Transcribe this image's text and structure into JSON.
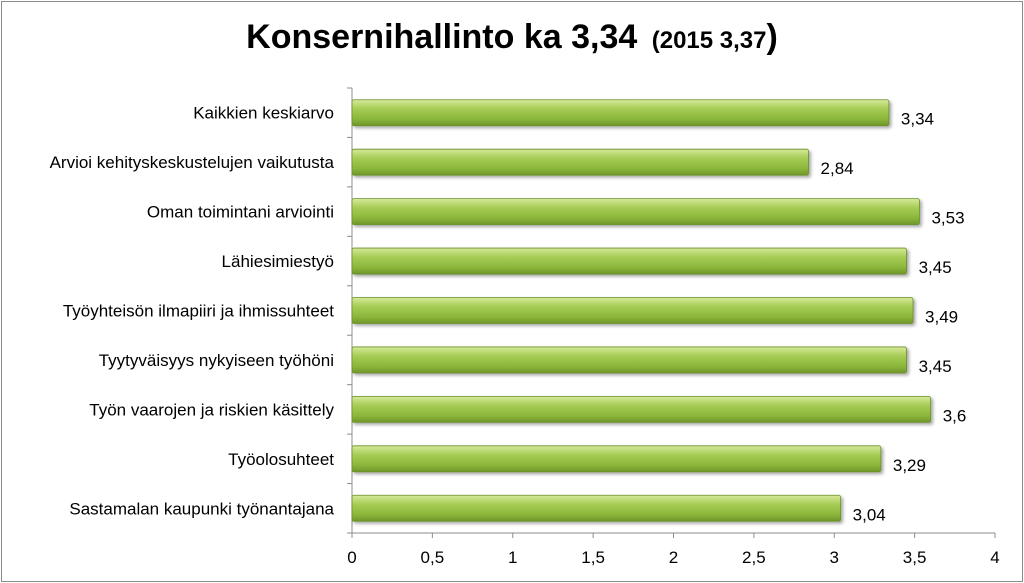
{
  "chart_data": {
    "type": "bar",
    "orientation": "horizontal",
    "title": "Konsernihallinto ka 3,34",
    "subtitle": "(2015  3,37",
    "title_close": ")",
    "categories": [
      "Kaikkien keskiarvo",
      "Arvioi kehityskeskustelujen vaikutusta",
      "Oman toimintani arviointi",
      "Lähiesimiestyö",
      "Työyhteisön ilmapiiri ja ihmissuhteet",
      "Tyytyväisyys nykyiseen työhöni",
      "Työn vaarojen ja riskien käsittely",
      "Työolosuhteet",
      "Sastamalan kaupunki työnantajana"
    ],
    "values": [
      3.34,
      2.84,
      3.53,
      3.45,
      3.49,
      3.45,
      3.6,
      3.29,
      3.04
    ],
    "value_labels": [
      "3,34",
      "2,84",
      "3,53",
      "3,45",
      "3,49",
      "3,45",
      "3,6",
      "3,29",
      "3,04"
    ],
    "xlim": [
      0,
      4
    ],
    "xticks": [
      0,
      0.5,
      1,
      1.5,
      2,
      2.5,
      3,
      3.5,
      4
    ],
    "xtick_labels": [
      "0",
      "0,5",
      "1",
      "1,5",
      "2",
      "2,5",
      "3",
      "3,5",
      "4"
    ],
    "grid": false,
    "legend": "none",
    "bar_color": "#8dba3c"
  }
}
